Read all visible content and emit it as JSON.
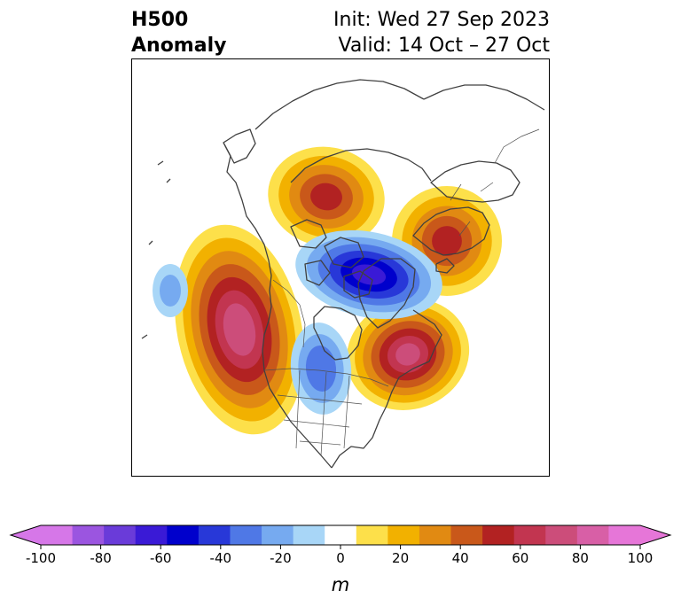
{
  "title": {
    "left_line1": "H500",
    "left_line2": "Anomaly",
    "right_line1": "Init: Wed 27 Sep 2023",
    "right_line2": "Valid: 14 Oct – 27 Oct"
  },
  "chart_data": {
    "type": "heatmap",
    "variable": "500 hPa geopotential height anomaly",
    "projection": "north polar stereographic",
    "region": "Northern Hemisphere",
    "unit_label": "m",
    "colorbar": {
      "extend": "both",
      "ticks": [
        -100,
        -80,
        -60,
        -40,
        -20,
        0,
        20,
        40,
        60,
        80,
        100
      ],
      "levels": [
        -100,
        -90,
        -80,
        -70,
        -60,
        -50,
        -40,
        -30,
        -20,
        -10,
        10,
        20,
        30,
        40,
        50,
        60,
        70,
        80,
        90,
        100
      ],
      "colors": [
        "#d677e8",
        "#9b55e0",
        "#6a3bd9",
        "#3a1ad6",
        "#0000cc",
        "#2838d8",
        "#4f78e6",
        "#76aaf0",
        "#a8d6f7",
        "#ffffff",
        "#fde04a",
        "#f2b100",
        "#e18a12",
        "#c9581a",
        "#b22222",
        "#c23550",
        "#cc4d7a",
        "#d85fa6",
        "#e676d8"
      ],
      "under_color": "#d677e8",
      "over_color": "#e676d8"
    },
    "anomaly_centers": [
      {
        "area": "Northeast Pacific / US West Coast",
        "sign": "positive",
        "peak_m": 75
      },
      {
        "area": "Northeastern Canada / Labrador",
        "sign": "positive",
        "peak_m": 70
      },
      {
        "area": "Northwest Siberia / Ural",
        "sign": "positive",
        "peak_m": 50
      },
      {
        "area": "Northeastern Siberia",
        "sign": "positive",
        "peak_m": 50
      },
      {
        "area": "Arctic Ocean / North Pole",
        "sign": "negative",
        "peak_m": -60
      },
      {
        "area": "Central Canada / Hudson Bay",
        "sign": "negative",
        "peak_m": -35
      },
      {
        "area": "North Pacific",
        "sign": "negative",
        "peak_m": -20
      }
    ]
  }
}
